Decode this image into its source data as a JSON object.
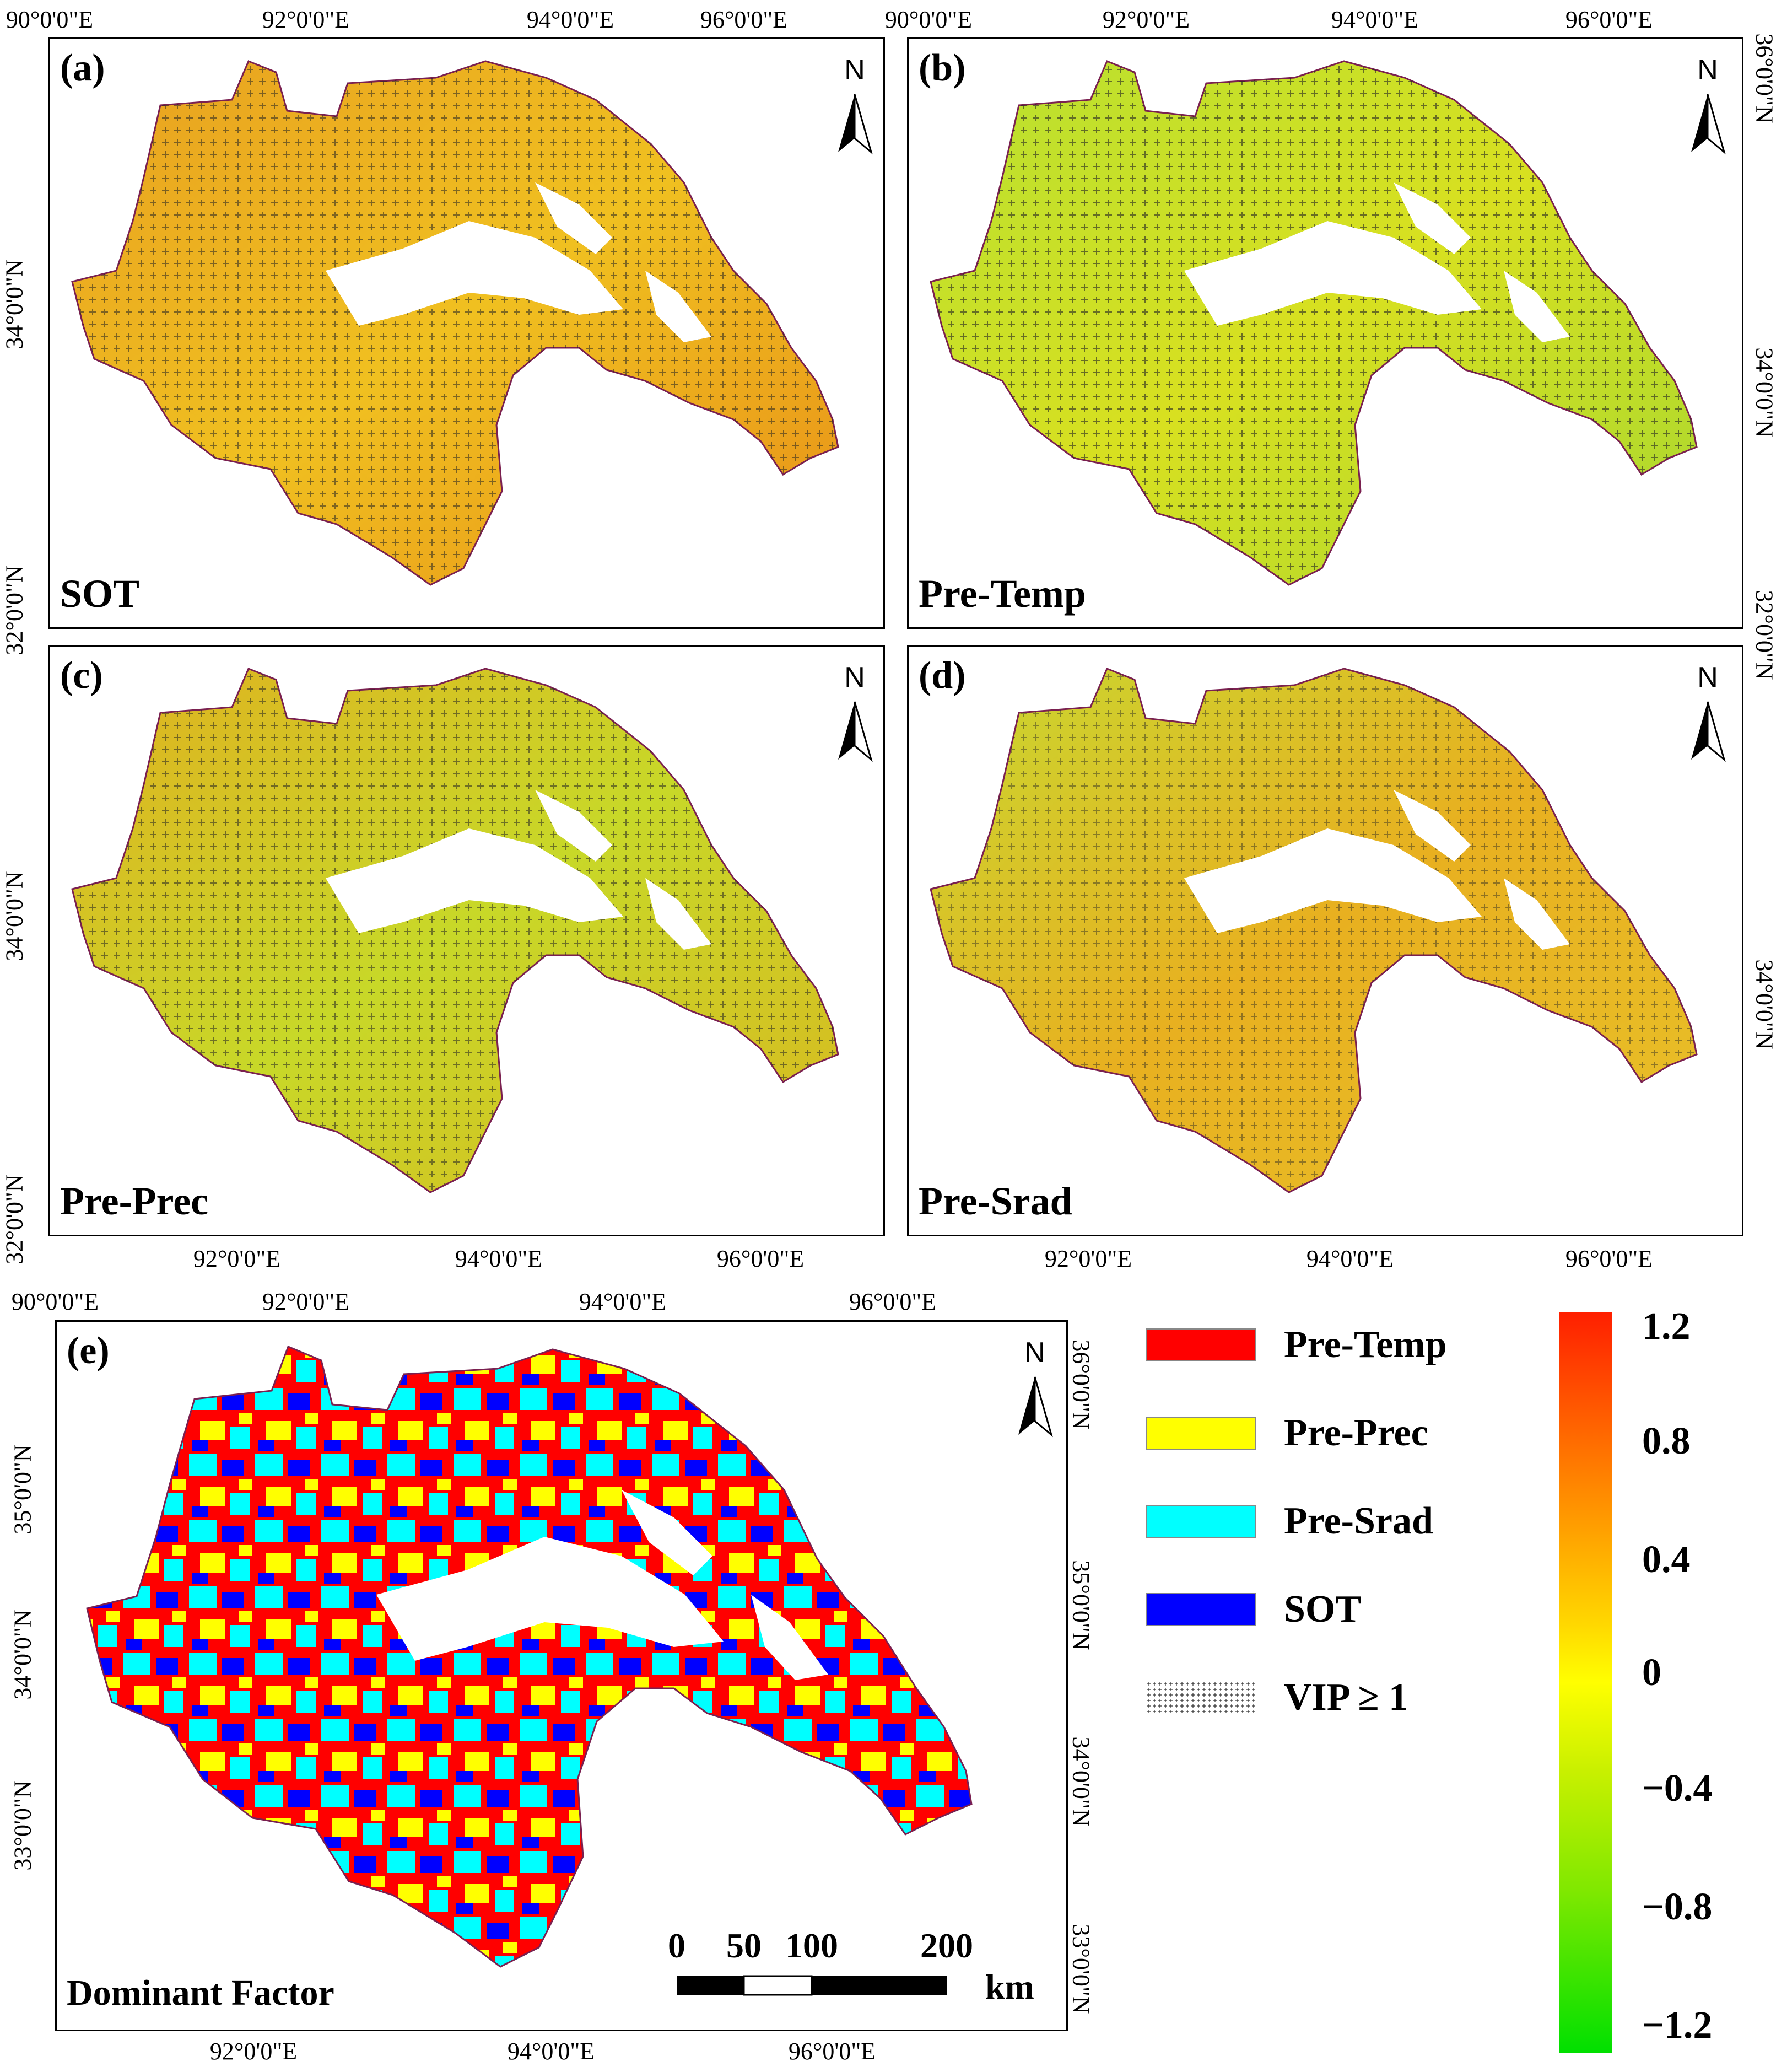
{
  "panels": [
    {
      "id": "a",
      "label": "(a)",
      "name": "SOT"
    },
    {
      "id": "b",
      "label": "(b)",
      "name": "Pre-Temp"
    },
    {
      "id": "c",
      "label": "(c)",
      "name": "Pre-Prec"
    },
    {
      "id": "d",
      "label": "(d)",
      "name": "Pre-Srad"
    },
    {
      "id": "e",
      "label": "(e)",
      "name": "Dominant Factor"
    }
  ],
  "ticks": {
    "lon_90": "90°0'0\"E",
    "lon_92": "92°0'0\"E",
    "lon_94": "94°0'0\"E",
    "lon_96": "96°0'0\"E",
    "lat_32": "32°0'0\"N",
    "lat_33": "33°0'0\"N",
    "lat_34": "34°0'0\"N",
    "lat_35": "35°0'0\"N",
    "lat_36": "36°0'0\"N"
  },
  "north_label": "N",
  "legend": {
    "items": [
      {
        "label": "Pre-Temp",
        "color": "#ff0000"
      },
      {
        "label": "Pre-Prec",
        "color": "#ffff00"
      },
      {
        "label": "Pre-Srad",
        "color": "#00ffff"
      },
      {
        "label": "SOT",
        "color": "#0000ff"
      },
      {
        "label": "VIP ≥ 1",
        "color": "hatch"
      }
    ]
  },
  "colorbar": {
    "ticks": [
      "1.2",
      "0.8",
      "0.4",
      "0",
      "−0.4",
      "−0.8",
      "−1.2"
    ],
    "colors": [
      "#ff1f00",
      "#ff8000",
      "#ffd700",
      "#ffff00",
      "#c8f000",
      "#80e800",
      "#00e000"
    ]
  },
  "scale_bar": {
    "labels": [
      "0",
      "50",
      "100",
      "200"
    ],
    "unit": "km"
  }
}
